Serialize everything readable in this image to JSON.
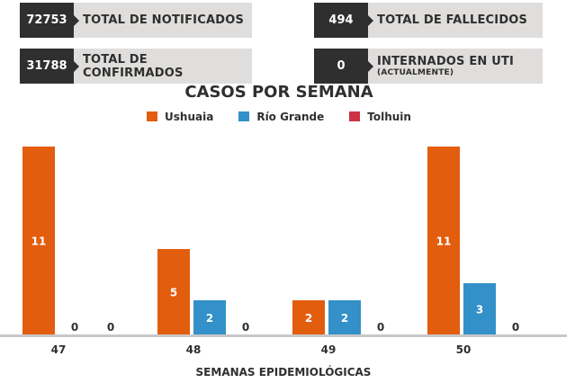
{
  "stats": [
    {
      "value": "72753",
      "label": "TOTAL DE NOTIFICADOS"
    },
    {
      "value": "31788",
      "label": "TOTAL DE CONFIRMADOS"
    },
    {
      "value": "494",
      "label": "TOTAL DE FALLECIDOS"
    },
    {
      "value": "0",
      "label": "INTERNADOS EN UTI",
      "sublabel": "(ACTUALMENTE)"
    }
  ],
  "chart_data": {
    "type": "bar",
    "title": "CASOS POR SEMANA",
    "xlabel": "SEMANAS EPIDEMIOLÓGICAS",
    "ylabel": "",
    "categories": [
      "47",
      "48",
      "49",
      "50"
    ],
    "series": [
      {
        "name": "Ushuaia",
        "color": "#e35d0e",
        "values": [
          11,
          5,
          2,
          11
        ]
      },
      {
        "name": "Río Grande",
        "color": "#3390c8",
        "values": [
          0,
          2,
          2,
          3
        ]
      },
      {
        "name": "Tolhuin",
        "color": "#cc3344",
        "values": [
          0,
          0,
          0,
          0
        ]
      }
    ],
    "ylim": [
      0,
      11
    ],
    "grid": false,
    "legend": "top"
  }
}
